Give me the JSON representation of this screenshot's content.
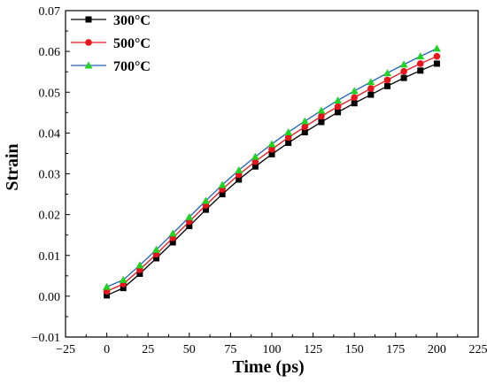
{
  "chart_data": {
    "type": "line",
    "title": "",
    "xlabel": "Time (ps)",
    "ylabel": "Strain",
    "xlim": [
      -25,
      225
    ],
    "ylim": [
      -0.01,
      0.07
    ],
    "x_ticks": [
      "−25",
      "0",
      "25",
      "50",
      "75",
      "100",
      "125",
      "150",
      "175",
      "200",
      "225"
    ],
    "y_ticks": [
      "−0.01",
      "0.00",
      "0.01",
      "0.02",
      "0.03",
      "0.04",
      "0.05",
      "0.06",
      "0.07"
    ],
    "grid": false,
    "legend_position": "top-left",
    "x": [
      0,
      10,
      20,
      30,
      40,
      50,
      60,
      70,
      80,
      90,
      100,
      110,
      120,
      130,
      140,
      150,
      160,
      170,
      180,
      190,
      200
    ],
    "series": [
      {
        "name": "300°C",
        "color": "#000000",
        "marker": "square",
        "values": [
          0.0002,
          0.002,
          0.0055,
          0.0093,
          0.0132,
          0.0172,
          0.0212,
          0.025,
          0.0286,
          0.0318,
          0.0348,
          0.0376,
          0.0402,
          0.0427,
          0.0451,
          0.0473,
          0.0494,
          0.0515,
          0.0535,
          0.0553,
          0.057
        ]
      },
      {
        "name": "500°C",
        "color": "#e8141b",
        "marker": "circle",
        "values": [
          0.0012,
          0.003,
          0.0065,
          0.0103,
          0.0143,
          0.0183,
          0.0223,
          0.0262,
          0.0298,
          0.033,
          0.036,
          0.0389,
          0.0415,
          0.0441,
          0.0465,
          0.0487,
          0.0509,
          0.053,
          0.0551,
          0.057,
          0.0588
        ]
      },
      {
        "name": "700°C",
        "color": "#2f5fb5",
        "line_color": "#1f5fbf",
        "marker": "triangle",
        "marker_color": "#21d221",
        "values": [
          0.0023,
          0.004,
          0.0076,
          0.0114,
          0.0154,
          0.0194,
          0.0234,
          0.0273,
          0.0309,
          0.0342,
          0.0373,
          0.0402,
          0.0429,
          0.0455,
          0.048,
          0.0503,
          0.0525,
          0.0547,
          0.0568,
          0.0588,
          0.0607
        ]
      }
    ]
  }
}
